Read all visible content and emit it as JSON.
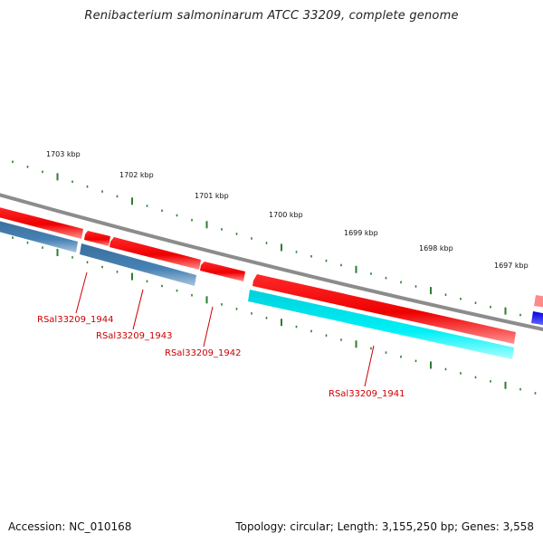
{
  "title": "Renibacterium salmoninarum ATCC 33209, complete genome",
  "footer": {
    "accession": "Accession: NC_010168",
    "summary": "Topology: circular; Length: 3,155,250 bp; Genes: 3,558"
  },
  "ruler": {
    "unit": "kbp",
    "labels": [
      "1703 kbp",
      "1702 kbp",
      "1701 kbp",
      "1700 kbp",
      "1699 kbp",
      "1698 kbp",
      "1697 kbp"
    ]
  },
  "genes": [
    {
      "name": "RSal33209_1944",
      "strand": "minus"
    },
    {
      "name": "RSal33209_1943",
      "strand": "minus"
    },
    {
      "name": "RSal33209_1942",
      "strand": "minus"
    },
    {
      "name": "RSal33209_1941",
      "strand": "minus"
    }
  ],
  "colors": {
    "backbone": "#8a8a8a",
    "cds_red": "#ee0000",
    "cds_red_light": "#ff8080",
    "steel_blue": "#4682b4",
    "cyan": "#00e5ee",
    "blue": "#0000ee",
    "tick_green": "#2e7d2e",
    "label_red": "#cc0000"
  }
}
